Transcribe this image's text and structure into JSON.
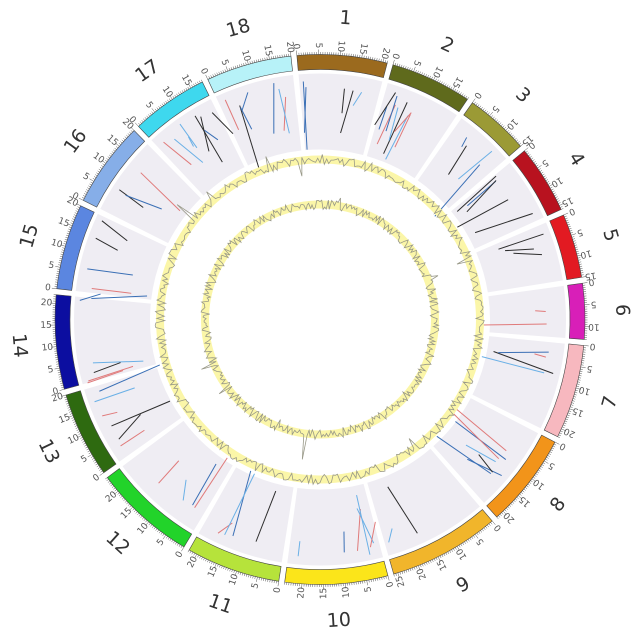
{
  "chart_data": {
    "type": "circos",
    "chromosomes": [
      {
        "name": "1",
        "length": 21,
        "color": "#9b6a1e"
      },
      {
        "name": "2",
        "length": 19,
        "color": "#5f6a1c"
      },
      {
        "name": "3",
        "length": 15,
        "color": "#9b9a35"
      },
      {
        "name": "4",
        "length": 16,
        "color": "#b8121f"
      },
      {
        "name": "5",
        "length": 15,
        "color": "#e21a22"
      },
      {
        "name": "6",
        "length": 13,
        "color": "#d81fb8"
      },
      {
        "name": "7",
        "length": 22,
        "color": "#f7b8bf"
      },
      {
        "name": "8",
        "length": 22,
        "color": "#f2941a"
      },
      {
        "name": "9",
        "length": 26,
        "color": "#f1b52b"
      },
      {
        "name": "10",
        "length": 24,
        "color": "#fbe51a"
      },
      {
        "name": "11",
        "length": 22,
        "color": "#b6e33b"
      },
      {
        "name": "12",
        "length": 24,
        "color": "#22d32a"
      },
      {
        "name": "13",
        "length": 20,
        "color": "#2e6a10"
      },
      {
        "name": "14",
        "length": 22,
        "color": "#0c0ea0"
      },
      {
        "name": "15",
        "length": 20,
        "color": "#5b86e0"
      },
      {
        "name": "16",
        "length": 20,
        "color": "#86aee8"
      },
      {
        "name": "17",
        "length": 18,
        "color": "#3ed8ee"
      },
      {
        "name": "18",
        "length": 20,
        "color": "#b7f2f8"
      }
    ],
    "tick_labels": [
      "0",
      "5",
      "10",
      "15",
      "20",
      "25"
    ],
    "tracks": [
      "variant-links",
      "line-plot-outer",
      "line-plot-inner"
    ],
    "line_color": "#999988",
    "fill_color": "#fbf6a8",
    "track_background": "#efedf3",
    "link_colors": [
      "#2d2d2d",
      "#e07a7a",
      "#6ab0e6",
      "#3a6fb5"
    ]
  }
}
